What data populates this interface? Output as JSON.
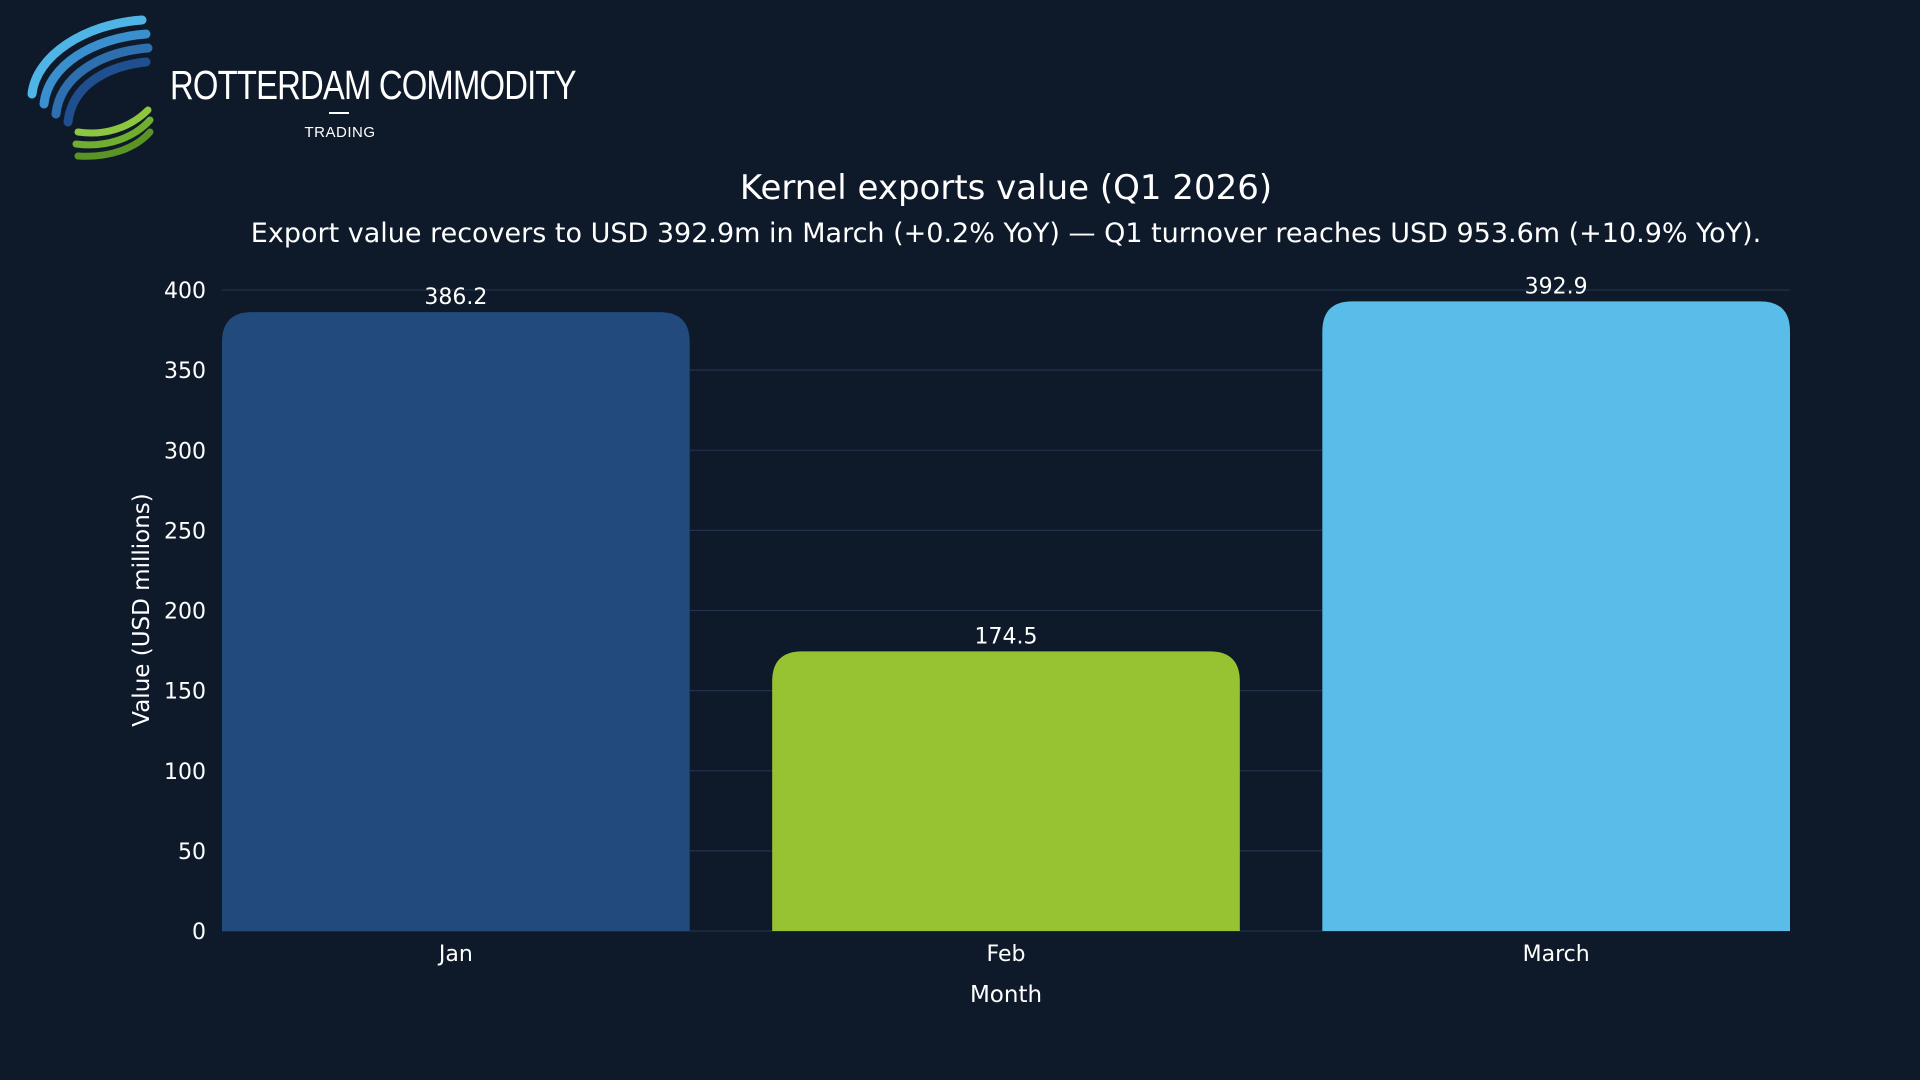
{
  "brand": {
    "name": "ROTTERDAM COMMODITY",
    "tagline": "TRADING",
    "logo_icon": "swoosh-logo-icon",
    "colors": {
      "blue_dark": "#1f4f8f",
      "blue_light": "#4fb5e6",
      "green": "#8dc63f"
    }
  },
  "chart_data": {
    "type": "bar",
    "title": "Kernel exports value (Q1 2026)",
    "subtitle": "Export value recovers to USD 392.9m in March (+0.2% YoY) — Q1 turnover reaches USD 953.6m (+10.9% YoY).",
    "xlabel": "Month",
    "ylabel": "Value (USD millions)",
    "ylim": [
      0,
      400
    ],
    "yticks": [
      0,
      50,
      100,
      150,
      200,
      250,
      300,
      350,
      400
    ],
    "grid": true,
    "categories": [
      "Jan",
      "Feb",
      "March"
    ],
    "values": [
      386.2,
      174.5,
      392.9
    ],
    "data_labels": [
      "386.2",
      "174.5",
      "392.9"
    ],
    "colors": [
      "#224a7d",
      "#97c232",
      "#59bce9"
    ]
  }
}
